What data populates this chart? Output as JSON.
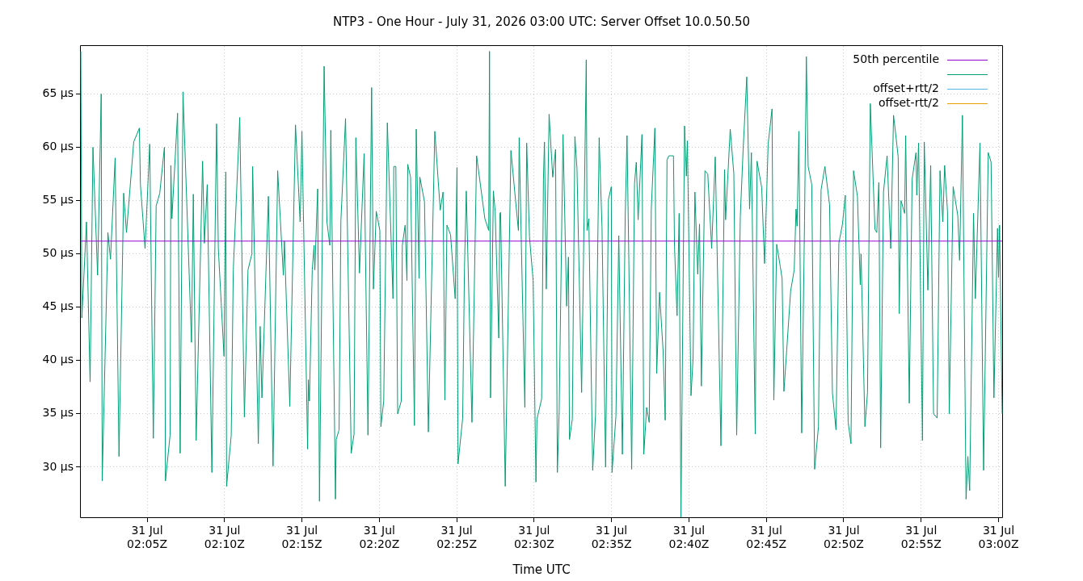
{
  "chart_data": {
    "type": "line",
    "title": "NTP3 - One Hour - July 31, 2026 03:00 UTC: Server Offset 10.0.50.50",
    "xlabel": "Time UTC",
    "xlim": [
      "2026-07-31T02:00:43",
      "2026-07-31T03:00:14"
    ],
    "xticks": [
      {
        "value": "2026-07-31T02:05",
        "label": "31 Jul\n02:05Z"
      },
      {
        "value": "2026-07-31T02:10",
        "label": "31 Jul\n02:10Z"
      },
      {
        "value": "2026-07-31T02:15",
        "label": "31 Jul\n02:15Z"
      },
      {
        "value": "2026-07-31T02:20",
        "label": "31 Jul\n02:20Z"
      },
      {
        "value": "2026-07-31T02:25",
        "label": "31 Jul\n02:25Z"
      },
      {
        "value": "2026-07-31T02:30",
        "label": "31 Jul\n02:30Z"
      },
      {
        "value": "2026-07-31T02:35",
        "label": "31 Jul\n02:35Z"
      },
      {
        "value": "2026-07-31T02:40",
        "label": "31 Jul\n02:40Z"
      },
      {
        "value": "2026-07-31T02:45",
        "label": "31 Jul\n02:45Z"
      },
      {
        "value": "2026-07-31T02:50",
        "label": "31 Jul\n02:50Z"
      },
      {
        "value": "2026-07-31T02:55",
        "label": "31 Jul\n02:55Z"
      },
      {
        "value": "2026-07-31T03:00",
        "label": "31 Jul\n03:00Z"
      }
    ],
    "ylim": [
      25.3,
      69.5
    ],
    "yticks": [
      {
        "value": 30,
        "label": "30 µs"
      },
      {
        "value": 35,
        "label": "35 µs"
      },
      {
        "value": 40,
        "label": "40 µs"
      },
      {
        "value": 45,
        "label": "45 µs"
      },
      {
        "value": 50,
        "label": "50 µs"
      },
      {
        "value": 55,
        "label": "55 µs"
      },
      {
        "value": 60,
        "label": "60 µs"
      },
      {
        "value": 65,
        "label": "65 µs"
      }
    ],
    "grid": true,
    "legend": "top right",
    "series": [
      {
        "name": "50th percentile",
        "color": "#9400d3",
        "x": [
          "2026-07-31T02:00:43",
          "2026-07-31T03:00:14"
        ],
        "values": [
          51.2,
          51.2
        ]
      },
      {
        "color": "#009e73",
        "x": [
          "2026-07-31T02:00:43",
          "2026-07-31T02:00:47",
          "2026-07-31T02:01:05",
          "2026-07-31T02:01:19",
          "2026-07-31T02:01:30",
          "2026-07-31T02:01:48",
          "2026-07-31T02:02:02",
          "2026-07-31T02:02:06",
          "2026-07-31T02:02:28",
          "2026-07-31T02:02:38",
          "2026-07-31T02:02:56",
          "2026-07-31T02:03:11",
          "2026-07-31T02:03:29",
          "2026-07-31T02:03:40",
          "2026-07-31T02:04:08",
          "2026-07-31T02:04:30",
          "2026-07-31T02:04:34",
          "2026-07-31T02:04:52",
          "2026-07-31T02:05:10",
          "2026-07-31T02:05:24",
          "2026-07-31T02:05:35",
          "2026-07-31T02:05:49",
          "2026-07-31T02:06:07",
          "2026-07-31T02:06:11",
          "2026-07-31T02:06:29",
          "2026-07-31T02:06:32",
          "2026-07-31T02:06:36",
          "2026-07-31T02:06:58",
          "2026-07-31T02:07:08",
          "2026-07-31T02:07:19",
          "2026-07-31T02:07:52",
          "2026-07-31T02:07:59",
          "2026-07-31T02:08:10",
          "2026-07-31T02:08:35",
          "2026-07-31T02:08:42",
          "2026-07-31T02:08:53",
          "2026-07-31T02:09:11",
          "2026-07-31T02:09:29",
          "2026-07-31T02:09:36",
          "2026-07-31T02:09:58",
          "2026-07-31T02:10:05",
          "2026-07-31T02:10:08",
          "2026-07-31T02:10:26",
          "2026-07-31T02:10:34",
          "2026-07-31T02:10:59",
          "2026-07-31T02:11:17",
          "2026-07-31T02:11:31",
          "2026-07-31T02:11:46",
          "2026-07-31T02:11:49",
          "2026-07-31T02:12:11",
          "2026-07-31T02:12:18",
          "2026-07-31T02:12:25",
          "2026-07-31T02:12:50",
          "2026-07-31T02:13:08",
          "2026-07-31T02:13:26",
          "2026-07-31T02:13:48",
          "2026-07-31T02:13:52",
          "2026-07-31T02:14:13",
          "2026-07-31T02:14:35",
          "2026-07-31T02:14:53",
          "2026-07-31T02:15:00",
          "2026-07-31T02:15:22",
          "2026-07-31T02:15:25",
          "2026-07-31T02:15:29",
          "2026-07-31T02:15:40",
          "2026-07-31T02:15:47",
          "2026-07-31T02:15:50",
          "2026-07-31T02:16:01",
          "2026-07-31T02:16:08",
          "2026-07-31T02:16:26",
          "2026-07-31T02:16:37",
          "2026-07-31T02:16:48",
          "2026-07-31T02:16:52",
          "2026-07-31T02:17:10",
          "2026-07-31T02:17:13",
          "2026-07-31T02:17:24",
          "2026-07-31T02:17:31",
          "2026-07-31T02:17:49",
          "2026-07-31T02:18:11",
          "2026-07-31T02:18:22",
          "2026-07-31T02:18:29",
          "2026-07-31T02:18:43",
          "2026-07-31T02:19:01",
          "2026-07-31T02:19:16",
          "2026-07-31T02:19:30",
          "2026-07-31T02:19:37",
          "2026-07-31T02:19:48",
          "2026-07-31T02:20:02",
          "2026-07-31T02:20:06",
          "2026-07-31T02:20:17",
          "2026-07-31T02:20:31",
          "2026-07-31T02:20:53",
          "2026-07-31T02:20:56",
          "2026-07-31T02:21:04",
          "2026-07-31T02:21:11",
          "2026-07-31T02:21:25",
          "2026-07-31T02:21:29",
          "2026-07-31T02:21:40",
          "2026-07-31T02:21:47",
          "2026-07-31T02:21:50",
          "2026-07-31T02:22:01",
          "2026-07-31T02:22:16",
          "2026-07-31T02:22:23",
          "2026-07-31T02:22:34",
          "2026-07-31T02:22:37",
          "2026-07-31T02:22:55",
          "2026-07-31T02:23:10",
          "2026-07-31T02:23:35",
          "2026-07-31T02:23:56",
          "2026-07-31T02:24:07",
          "2026-07-31T02:24:14",
          "2026-07-31T02:24:22",
          "2026-07-31T02:24:36",
          "2026-07-31T02:24:54",
          "2026-07-31T02:25:01",
          "2026-07-31T02:25:05",
          "2026-07-31T02:25:23",
          "2026-07-31T02:25:30",
          "2026-07-31T02:25:37",
          "2026-07-31T02:25:59",
          "2026-07-31T02:26:17",
          "2026-07-31T02:26:49",
          "2026-07-31T02:27:04",
          "2026-07-31T02:27:07",
          "2026-07-31T02:27:11",
          "2026-07-31T02:27:22",
          "2026-07-31T02:27:29",
          "2026-07-31T02:27:43",
          "2026-07-31T02:27:47",
          "2026-07-31T02:27:50",
          "2026-07-31T02:28:08",
          "2026-07-31T02:28:30",
          "2026-07-31T02:28:48",
          "2026-07-31T02:28:59",
          "2026-07-31T02:29:02",
          "2026-07-31T02:29:10",
          "2026-07-31T02:29:24",
          "2026-07-31T02:29:31",
          "2026-07-31T02:29:42",
          "2026-07-31T02:29:56",
          "2026-07-31T02:30:07",
          "2026-07-31T02:30:11",
          "2026-07-31T02:30:29",
          "2026-07-31T02:30:36",
          "2026-07-31T02:30:40",
          "2026-07-31T02:30:47",
          "2026-07-31T02:30:58",
          "2026-07-31T02:31:12",
          "2026-07-31T02:31:23",
          "2026-07-31T02:31:30",
          "2026-07-31T02:31:37",
          "2026-07-31T02:31:52",
          "2026-07-31T02:32:06",
          "2026-07-31T02:32:13",
          "2026-07-31T02:32:17",
          "2026-07-31T02:32:28",
          "2026-07-31T02:32:38",
          "2026-07-31T02:32:46",
          "2026-07-31T02:33:04",
          "2026-07-31T02:33:22",
          "2026-07-31T02:33:25",
          "2026-07-31T02:33:32",
          "2026-07-31T02:33:47",
          "2026-07-31T02:33:58",
          "2026-07-31T02:34:12",
          "2026-07-31T02:34:23",
          "2026-07-31T02:34:37",
          "2026-07-31T02:34:48",
          "2026-07-31T02:34:59",
          "2026-07-31T02:35:02",
          "2026-07-31T02:35:17",
          "2026-07-31T02:35:28",
          "2026-07-31T02:35:42",
          "2026-07-31T02:35:53",
          "2026-07-31T02:36:00",
          "2026-07-31T02:36:07",
          "2026-07-31T02:36:18",
          "2026-07-31T02:36:29",
          "2026-07-31T02:36:36",
          "2026-07-31T02:36:43",
          "2026-07-31T02:36:58",
          "2026-07-31T02:37:05",
          "2026-07-31T02:37:16",
          "2026-07-31T02:37:26",
          "2026-07-31T02:37:34",
          "2026-07-31T02:37:48",
          "2026-07-31T02:37:55",
          "2026-07-31T02:38:06",
          "2026-07-31T02:38:20",
          "2026-07-31T02:38:28",
          "2026-07-31T02:38:35",
          "2026-07-31T02:38:42",
          "2026-07-31T02:39:00",
          "2026-07-31T02:39:04",
          "2026-07-31T02:39:14",
          "2026-07-31T02:39:22",
          "2026-07-31T02:39:29",
          "2026-07-31T02:39:43",
          "2026-07-31T02:39:50",
          "2026-07-31T02:39:54",
          "2026-07-31T02:40:08",
          "2026-07-31T02:40:16",
          "2026-07-31T02:40:23",
          "2026-07-31T02:40:34",
          "2026-07-31T02:40:41",
          "2026-07-31T02:40:48",
          "2026-07-31T02:41:02",
          "2026-07-31T02:41:13",
          "2026-07-31T02:41:28",
          "2026-07-31T02:41:42",
          "2026-07-31T02:42:04",
          "2026-07-31T02:42:18",
          "2026-07-31T02:42:22",
          "2026-07-31T02:42:40",
          "2026-07-31T02:42:54",
          "2026-07-31T02:43:05",
          "2026-07-31T02:43:19",
          "2026-07-31T02:43:30",
          "2026-07-31T02:43:44",
          "2026-07-31T02:43:55",
          "2026-07-31T02:44:02",
          "2026-07-31T02:44:17",
          "2026-07-31T02:44:24",
          "2026-07-31T02:44:42",
          "2026-07-31T02:44:53",
          "2026-07-31T02:45:07",
          "2026-07-31T02:45:22",
          "2026-07-31T02:45:29",
          "2026-07-31T02:45:40",
          "2026-07-31T02:45:54",
          "2026-07-31T02:46:01",
          "2026-07-31T02:46:08",
          "2026-07-31T02:46:19",
          "2026-07-31T02:46:34",
          "2026-07-31T02:46:48",
          "2026-07-31T02:46:55",
          "2026-07-31T02:46:59",
          "2026-07-31T02:47:06",
          "2026-07-31T02:47:17",
          "2026-07-31T02:47:28",
          "2026-07-31T02:47:35",
          "2026-07-31T02:47:42",
          "2026-07-31T02:47:56",
          "2026-07-31T02:48:07",
          "2026-07-31T02:48:22",
          "2026-07-31T02:48:32",
          "2026-07-31T02:48:47",
          "2026-07-31T02:49:05",
          "2026-07-31T02:49:16",
          "2026-07-31T02:49:30",
          "2026-07-31T02:49:41",
          "2026-07-31T02:49:55",
          "2026-07-31T02:50:06",
          "2026-07-31T02:50:17",
          "2026-07-31T02:50:28",
          "2026-07-31T02:50:38",
          "2026-07-31T02:50:53",
          "2026-07-31T02:51:04",
          "2026-07-31T02:51:07",
          "2026-07-31T02:51:22",
          "2026-07-31T02:51:32",
          "2026-07-31T02:51:43",
          "2026-07-31T02:52:01",
          "2026-07-31T02:52:08",
          "2026-07-31T02:52:16",
          "2026-07-31T02:52:23",
          "2026-07-31T02:52:34",
          "2026-07-31T02:52:48",
          "2026-07-31T02:53:02",
          "2026-07-31T02:53:13",
          "2026-07-31T02:53:31",
          "2026-07-31T02:53:35",
          "2026-07-31T02:53:42",
          "2026-07-31T02:53:56",
          "2026-07-31T02:54:00",
          "2026-07-31T02:54:14",
          "2026-07-31T02:54:25",
          "2026-07-31T02:54:40",
          "2026-07-31T02:54:43",
          "2026-07-31T02:54:50",
          "2026-07-31T02:55:05",
          "2026-07-31T02:55:12",
          "2026-07-31T02:55:26",
          "2026-07-31T02:55:37",
          "2026-07-31T02:55:48",
          "2026-07-31T02:56:02",
          "2026-07-31T02:56:13",
          "2026-07-31T02:56:24",
          "2026-07-31T02:56:31",
          "2026-07-31T02:56:42",
          "2026-07-31T02:56:49",
          "2026-07-31T02:57:04",
          "2026-07-31T02:57:22",
          "2026-07-31T02:57:29",
          "2026-07-31T02:57:40",
          "2026-07-31T02:57:54",
          "2026-07-31T02:58:01",
          "2026-07-31T02:58:08",
          "2026-07-31T02:58:23",
          "2026-07-31T02:58:30",
          "2026-07-31T02:58:48",
          "2026-07-31T02:59:02",
          "2026-07-31T02:59:20",
          "2026-07-31T02:59:31",
          "2026-07-31T02:59:42",
          "2026-07-31T02:59:56",
          "2026-07-31T03:00:00",
          "2026-07-31T03:00:04",
          "2026-07-31T03:00:14"
        ],
        "values": [
          69,
          44,
          53,
          38,
          60,
          48,
          65,
          28.7,
          52,
          49.5,
          59,
          31,
          55.7,
          52,
          60.5,
          61.8,
          56.5,
          50.5,
          60.3,
          32.7,
          54.5,
          55.7,
          60,
          28.7,
          33,
          58.3,
          53.3,
          63.2,
          31.3,
          65.2,
          41.7,
          55.6,
          32.5,
          58.7,
          51,
          56.5,
          29.5,
          62.2,
          50.5,
          40.4,
          57.7,
          28.2,
          33,
          48.5,
          62.8,
          34.7,
          48.5,
          50,
          58.2,
          32.2,
          43.2,
          36.5,
          55.4,
          30.1,
          57.8,
          48,
          51.2,
          35.7,
          62.1,
          53,
          61.5,
          31.7,
          38.2,
          36.2,
          48.5,
          50.8,
          48.5,
          56.1,
          26.8,
          67.6,
          53,
          50.8,
          61.6,
          27,
          32.6,
          33.5,
          53.1,
          62.7,
          31.3,
          33.1,
          60.9,
          48.2,
          59.4,
          33,
          65.6,
          46.7,
          54,
          52.2,
          33.8,
          36.2,
          62.3,
          45.8,
          58.2,
          58.2,
          35,
          36.2,
          50.8,
          52.7,
          47.5,
          58.4,
          57.2,
          33.9,
          61.7,
          47.7,
          57.2,
          54.9,
          33.3,
          61.5,
          54.1,
          55.8,
          36.3,
          52.7,
          51.8,
          45.8,
          58.1,
          30.3,
          34.6,
          48.7,
          55.9,
          34.2,
          59.2,
          53.3,
          52.2,
          69,
          36.5,
          55.9,
          54,
          42.1,
          53.8,
          53.9,
          28.2,
          59.7,
          55,
          52.2,
          60.9,
          51.4,
          35.6,
          60.4,
          51.6,
          47.5,
          28.6,
          34.5,
          36.4,
          57,
          60.5,
          46.7,
          63.1,
          57.2,
          59.8,
          29.5,
          35.3,
          61.2,
          45.1,
          49.7,
          32.6,
          34.5,
          61,
          58,
          37,
          68.2,
          52.2,
          53.3,
          29.7,
          35,
          60.9,
          52.5,
          30,
          55.1,
          56.3,
          29.5,
          34.8,
          51.7,
          31.2,
          53.6,
          61.1,
          49.4,
          29.8,
          56.6,
          58.6,
          53.2,
          61.2,
          31.2,
          35.6,
          34.2,
          54.2,
          61.8,
          38.8,
          46.4,
          40.8,
          34.4,
          58.8,
          59.2,
          59.2,
          50.7,
          44.2,
          53.8,
          25.3,
          62,
          57.3,
          60.6,
          36.7,
          40.2,
          55.8,
          48.1,
          52.8,
          37.6,
          57.8,
          57.5,
          50.5,
          59.1,
          32,
          57.9,
          53.2,
          61.7,
          57.5,
          33,
          53.5,
          59.8,
          66.6,
          54.2,
          59.5,
          33.1,
          58.7,
          56.2,
          49.1,
          60.3,
          63.6,
          36.3,
          50.9,
          48.8,
          47.7,
          37.1,
          41,
          46.5,
          48.5,
          54.2,
          52.6,
          61.5,
          33.2,
          53.1,
          68.5,
          58.2,
          56.5,
          29.8,
          33.8,
          56,
          58.2,
          54.6,
          37,
          33.5,
          51,
          52.8,
          55.5,
          34.2,
          32.2,
          57.8,
          55.4,
          47.1,
          50,
          33.8,
          37,
          64.1,
          52.3,
          52,
          56.7,
          31.8,
          55.8,
          59.2,
          50.5,
          63,
          59.1,
          44.4,
          55,
          53.8,
          61.1,
          36,
          57,
          59.5,
          55.5,
          60.4,
          32.5,
          60.5,
          46.6,
          58.3,
          35,
          34.6,
          57.8,
          53,
          58.3,
          54,
          35,
          56.3,
          53.6,
          49.4,
          63,
          27,
          31,
          27.8,
          53.8,
          45.8,
          60.4,
          29.7,
          59.5,
          58.6,
          36.5,
          52.4,
          47.8,
          52.7,
          35
        ]
      },
      {
        "name": "offset+rtt/2",
        "color": "#56b4e9"
      },
      {
        "name": "offset-rtt/2",
        "color": "#e69f00"
      }
    ]
  }
}
